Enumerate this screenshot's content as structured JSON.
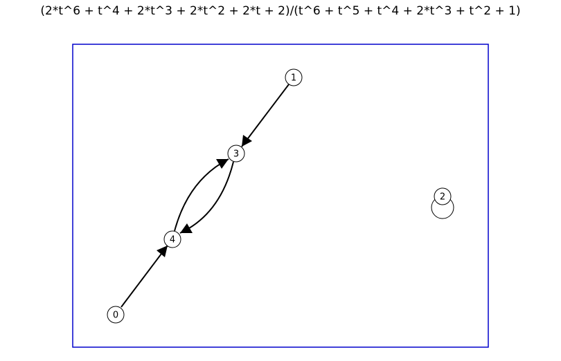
{
  "title": "(2*t^6 + t^4 + 2*t^3 + 2*t^2 + 2*t + 2)/(t^6 + t^5 + t^4 + 2*t^3 + t^2 + 1)",
  "colors": {
    "frame": "#0000cc",
    "edge": "#000000",
    "node_fill": "#ffffff",
    "node_stroke": "#000000"
  },
  "nodes": [
    {
      "id": "0",
      "label": "0"
    },
    {
      "id": "1",
      "label": "1"
    },
    {
      "id": "2",
      "label": "2"
    },
    {
      "id": "3",
      "label": "3"
    },
    {
      "id": "4",
      "label": "4"
    }
  ],
  "edges": [
    {
      "from": "1",
      "to": "3"
    },
    {
      "from": "0",
      "to": "4"
    },
    {
      "from": "4",
      "to": "3"
    },
    {
      "from": "3",
      "to": "4"
    },
    {
      "from": "2",
      "to": "2"
    }
  ]
}
